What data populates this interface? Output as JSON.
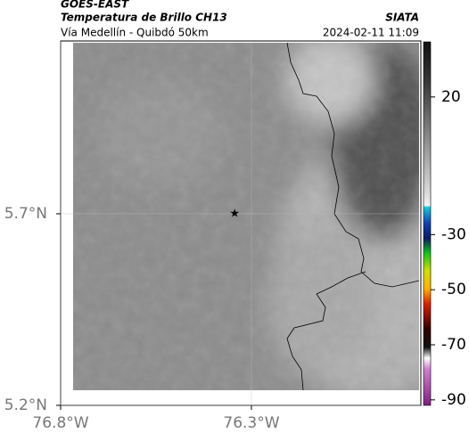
{
  "header": {
    "title": "GOES-EAST",
    "subtitle": "Temperatura de Brillo CH13",
    "source": "SIATA",
    "region": "Vía Medellín - Quibdó 50km",
    "timestamp": "2024-02-11 11:09"
  },
  "map": {
    "xlim": [
      -76.8,
      -75.856
    ],
    "ylim": [
      5.2,
      6.151
    ],
    "xticks": [
      {
        "value": -76.8,
        "label": "76.8°W"
      },
      {
        "value": -76.3,
        "label": "76.3°W"
      }
    ],
    "yticks": [
      {
        "value": 5.7,
        "label": "5.7°N"
      },
      {
        "value": 5.2,
        "label": "5.2°N"
      }
    ],
    "marker": {
      "lon": -76.344,
      "lat": 5.7
    }
  },
  "colorbar": {
    "range": [
      40,
      -92
    ],
    "ticks": [
      20,
      -30,
      -50,
      -70,
      -90
    ]
  }
}
